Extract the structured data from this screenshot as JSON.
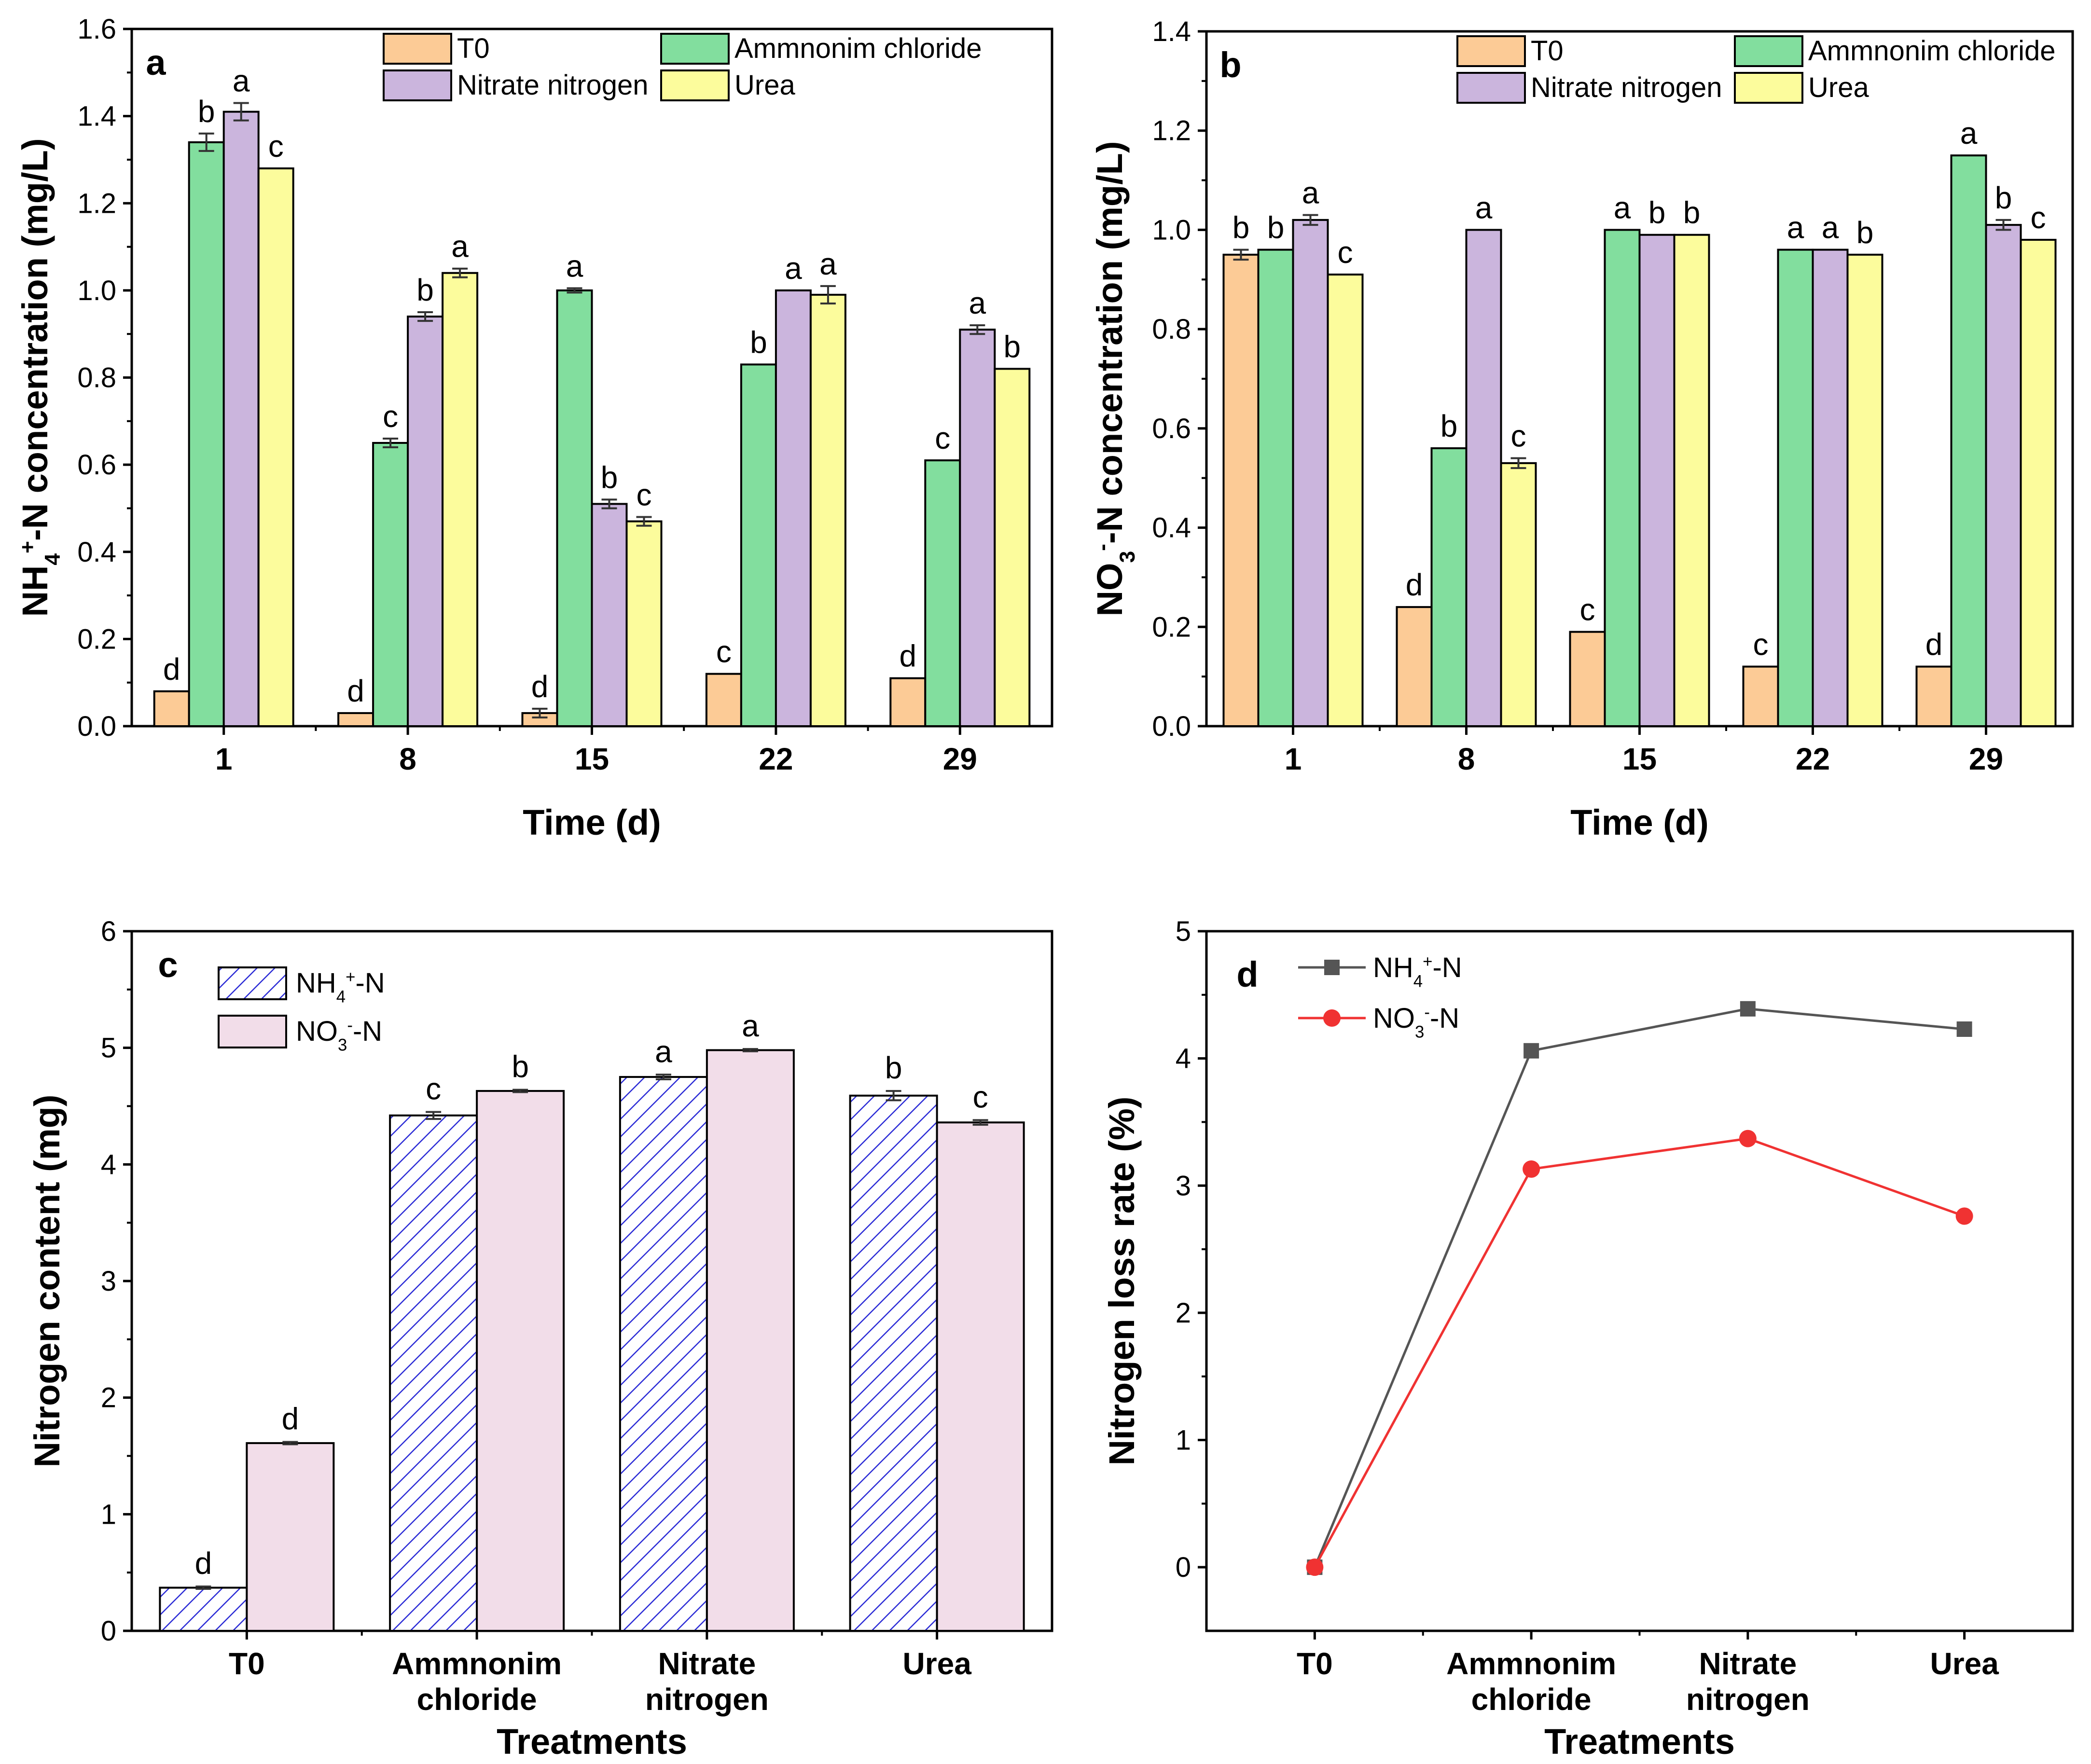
{
  "chart_data": [
    {
      "panel": "a",
      "type": "bar",
      "xlabel": "Time (d)",
      "ylabel": "NH4+-N concentration (mg/L)",
      "ylabel_parts": [
        "NH",
        "4",
        "+",
        "-N concentration (mg/L)"
      ],
      "ylim": [
        0,
        1.6
      ],
      "yticks": [
        "0.0",
        "0.2",
        "0.4",
        "0.6",
        "0.8",
        "1.0",
        "1.2",
        "1.4",
        "1.6"
      ],
      "categories": [
        "1",
        "8",
        "15",
        "22",
        "29"
      ],
      "series": [
        {
          "name": "T0",
          "color": "#fccb96",
          "values": [
            0.08,
            0.03,
            0.03,
            0.12,
            0.11
          ],
          "errors": [
            0,
            0,
            0.01,
            0,
            0
          ],
          "letters": [
            "d",
            "d",
            "d",
            "c",
            "d"
          ]
        },
        {
          "name": "Ammnonim chloride",
          "color": "#82de9e",
          "values": [
            1.34,
            0.65,
            1.0,
            0.83,
            0.61
          ],
          "errors": [
            0.02,
            0.01,
            0.005,
            0,
            0
          ],
          "letters": [
            "b",
            "c",
            "a",
            "b",
            "c"
          ]
        },
        {
          "name": "Nitrate nitrogen",
          "color": "#cbb5dd",
          "values": [
            1.41,
            0.94,
            0.51,
            1.0,
            0.91
          ],
          "errors": [
            0.02,
            0.01,
            0.01,
            0,
            0.01
          ],
          "letters": [
            "a",
            "b",
            "b",
            "a",
            "a"
          ]
        },
        {
          "name": "Urea",
          "color": "#fcfc9c",
          "values": [
            1.28,
            1.04,
            0.47,
            0.99,
            0.82
          ],
          "errors": [
            0,
            0.01,
            0.01,
            0.02,
            0
          ],
          "letters": [
            "c",
            "a",
            "c",
            "a",
            "b"
          ]
        }
      ]
    },
    {
      "panel": "b",
      "type": "bar",
      "xlabel": "Time (d)",
      "ylabel": "NO3--N concentration (mg/L)",
      "ylabel_parts": [
        "NO",
        "3",
        "-",
        "-N concentration (mg/L)"
      ],
      "ylim": [
        0,
        1.4
      ],
      "yticks": [
        "0.0",
        "0.2",
        "0.4",
        "0.6",
        "0.8",
        "1.0",
        "1.2",
        "1.4"
      ],
      "categories": [
        "1",
        "8",
        "15",
        "22",
        "29"
      ],
      "series": [
        {
          "name": "T0",
          "color": "#fccb96",
          "values": [
            0.95,
            0.24,
            0.19,
            0.12,
            0.12
          ],
          "errors": [
            0.01,
            0,
            0,
            0,
            0
          ],
          "letters": [
            "b",
            "d",
            "c",
            "c",
            "d"
          ]
        },
        {
          "name": "Ammnonim chloride",
          "color": "#82de9e",
          "values": [
            0.96,
            0.56,
            1.0,
            0.96,
            1.15
          ],
          "errors": [
            0,
            0,
            0,
            0,
            0
          ],
          "letters": [
            "b",
            "b",
            "a",
            "a",
            "a"
          ]
        },
        {
          "name": "Nitrate nitrogen",
          "color": "#cbb5dd",
          "values": [
            1.02,
            1.0,
            0.99,
            0.96,
            1.01
          ],
          "errors": [
            0.01,
            0,
            0,
            0,
            0.01
          ],
          "letters": [
            "a",
            "a",
            "b",
            "a",
            "b"
          ]
        },
        {
          "name": "Urea",
          "color": "#fcfc9c",
          "values": [
            0.91,
            0.53,
            0.99,
            0.95,
            0.98
          ],
          "errors": [
            0,
            0.01,
            0,
            0,
            0
          ],
          "letters": [
            "c",
            "c",
            "b",
            "b",
            "c"
          ]
        }
      ]
    },
    {
      "panel": "c",
      "type": "bar",
      "xlabel": "Treatments",
      "ylabel": "Nitrogen content (mg)",
      "ylim": [
        0,
        6
      ],
      "yticks": [
        "0",
        "1",
        "2",
        "3",
        "4",
        "5",
        "6"
      ],
      "categories": [
        [
          "T0"
        ],
        [
          "Ammnonim",
          "chloride"
        ],
        [
          "Nitrate",
          "nitrogen"
        ],
        [
          "Urea"
        ]
      ],
      "series": [
        {
          "name": "NH4+-N",
          "name_parts": [
            "NH",
            "4",
            "+",
            "-N"
          ],
          "color": "#2b2bd6",
          "fill": "hatch",
          "values": [
            0.37,
            4.42,
            4.75,
            4.59
          ],
          "errors": [
            0.01,
            0.03,
            0.02,
            0.04
          ],
          "letters": [
            "d",
            "c",
            "a",
            "b"
          ]
        },
        {
          "name": "NO3--N",
          "name_parts": [
            "NO",
            "3",
            "-",
            "-N"
          ],
          "color": "#f2dde9",
          "fill": "solid",
          "values": [
            1.61,
            4.63,
            4.98,
            4.36
          ],
          "errors": [
            0.01,
            0.01,
            0.01,
            0.02
          ],
          "letters": [
            "d",
            "b",
            "a",
            "c"
          ]
        }
      ]
    },
    {
      "panel": "d",
      "type": "line",
      "xlabel": "Treatments",
      "ylabel": "Nitrogen loss rate (%)",
      "ylim": [
        -0.5,
        5
      ],
      "yticks": [
        "0",
        "1",
        "2",
        "3",
        "4",
        "5"
      ],
      "categories": [
        [
          "T0"
        ],
        [
          "Ammnonim",
          "chloride"
        ],
        [
          "Nitrate",
          "nitrogen"
        ],
        [
          "Urea"
        ]
      ],
      "series": [
        {
          "name": "NH4+-N",
          "name_parts": [
            "NH",
            "4",
            "+",
            "-N"
          ],
          "color": "#555555",
          "marker": "square",
          "values": [
            0,
            4.06,
            4.39,
            4.23
          ]
        },
        {
          "name": "NO3--N",
          "name_parts": [
            "NO",
            "3",
            "-",
            "-N"
          ],
          "color": "#f03232",
          "marker": "circle",
          "values": [
            0,
            3.13,
            3.37,
            2.76
          ]
        }
      ]
    }
  ]
}
